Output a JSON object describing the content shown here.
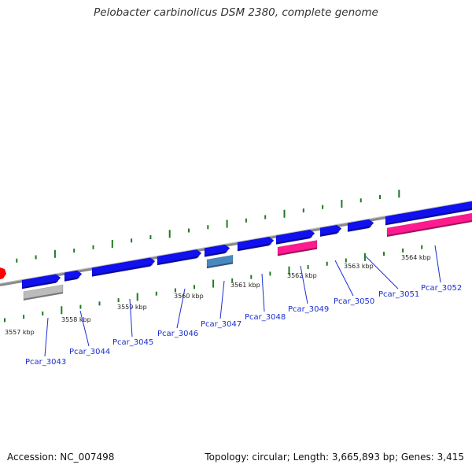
{
  "title": "Pelobacter carbinolicus DSM 2380, complete genome",
  "footer": {
    "accession": "Accession: NC_007498",
    "summary": "Topology: circular; Length: 3,665,893 bp; Genes: 3,415"
  },
  "colors": {
    "forward_gene": "#1010f0",
    "reverse_gene_blue": "#1010f0",
    "highlight_gene": "#4a88c0",
    "pseudo_gene": "#bcbcbc",
    "rna_gene": "#ff1a90",
    "backbone": "#8a8a8a",
    "ticks": "#1f7a1f",
    "label": "#1a2fd0",
    "marker": "#ff0000"
  },
  "scale_labels": [
    "3557 kbp",
    "3558 kbp",
    "3559 kbp",
    "3560 kbp",
    "3561 kbp",
    "3562 kbp",
    "3563 kbp",
    "3564 kbp"
  ],
  "genes": [
    {
      "label": "Pcar_3043",
      "type": "pseudo"
    },
    {
      "label": "Pcar_3044",
      "type": "forward"
    },
    {
      "label": "Pcar_3045",
      "type": "forward"
    },
    {
      "label": "Pcar_3046",
      "type": "forward"
    },
    {
      "label": "Pcar_3047",
      "type": "highlight"
    },
    {
      "label": "Pcar_3048",
      "type": "forward"
    },
    {
      "label": "Pcar_3049",
      "type": "rna"
    },
    {
      "label": "Pcar_3050",
      "type": "forward"
    },
    {
      "label": "Pcar_3051",
      "type": "forward"
    },
    {
      "label": "Pcar_3052",
      "type": "rna"
    }
  ]
}
